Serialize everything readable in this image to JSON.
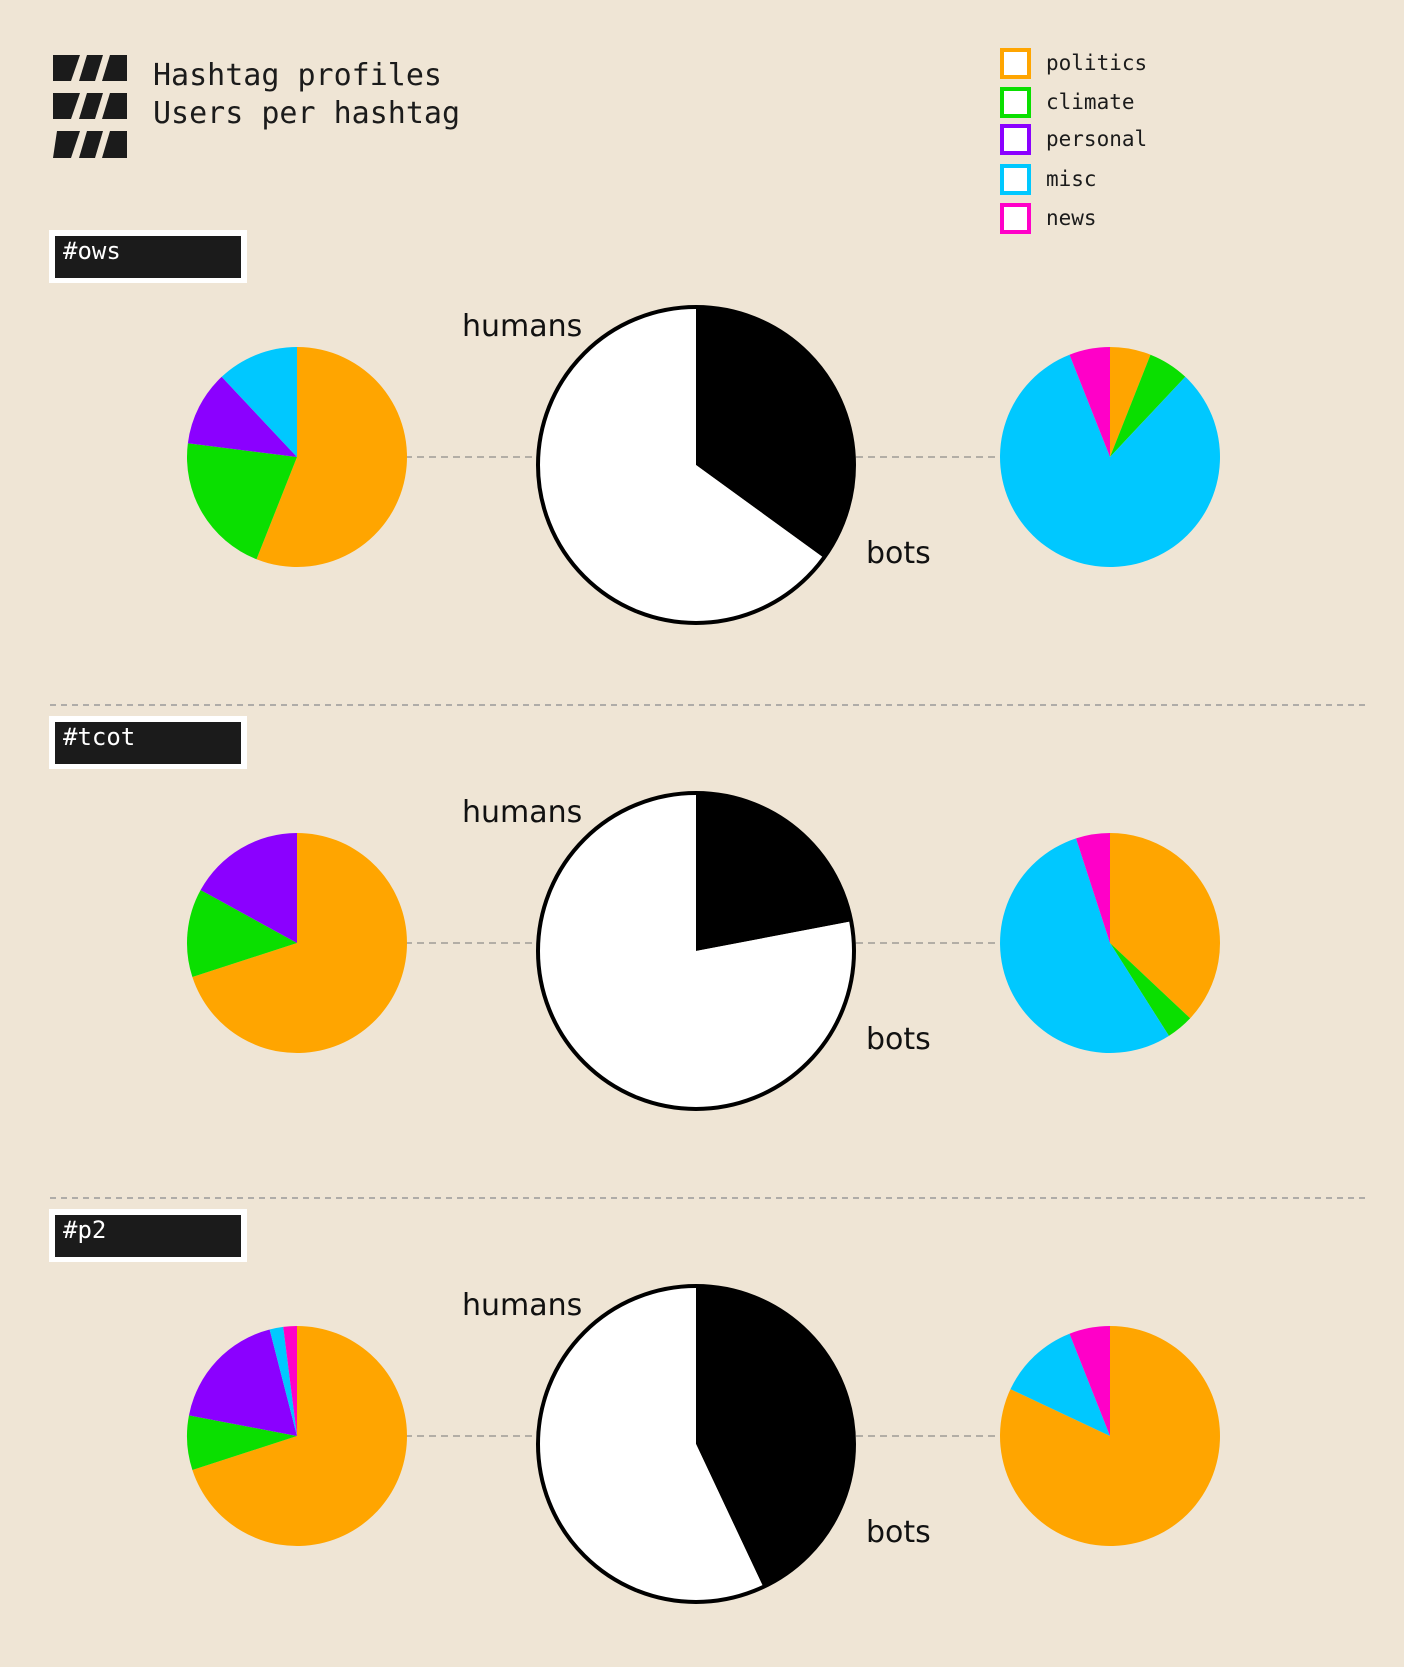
{
  "header": {
    "title_line1": "Hashtag profiles",
    "title_line2": "Users per hashtag"
  },
  "colors": {
    "background": "#efe5d5",
    "divider": "#9a9a9a",
    "tag_fill": "#1b1b1b",
    "tag_text": "#ffffff",
    "humans": "#ffffff",
    "bots": "#000000"
  },
  "legend": {
    "placement": "top-right",
    "items": [
      {
        "label": "politics",
        "color": "#ffa500"
      },
      {
        "label": "climate",
        "color": "#0adf00"
      },
      {
        "label": "personal",
        "color": "#8b00ff"
      },
      {
        "label": "misc",
        "color": "#00c8ff"
      },
      {
        "label": "news",
        "color": "#ff00c8"
      }
    ]
  },
  "chart_data": [
    {
      "type": "pie",
      "hashtag": "#ows",
      "center_labels": {
        "humans": "humans",
        "bots": "bots"
      },
      "humans_vs_bots": {
        "humans": 65,
        "bots": 35
      },
      "human_topics": {
        "politics": 56,
        "climate": 21,
        "personal": 11,
        "misc": 12,
        "news": 0
      },
      "bot_topics": {
        "politics": 6,
        "climate": 6,
        "personal": 0,
        "misc": 82,
        "news": 6
      }
    },
    {
      "type": "pie",
      "hashtag": "#tcot",
      "center_labels": {
        "humans": "humans",
        "bots": "bots"
      },
      "humans_vs_bots": {
        "humans": 78,
        "bots": 22
      },
      "human_topics": {
        "politics": 70,
        "climate": 13,
        "personal": 17,
        "misc": 0,
        "news": 0
      },
      "bot_topics": {
        "politics": 37,
        "climate": 4,
        "personal": 0,
        "misc": 54,
        "news": 5
      }
    },
    {
      "type": "pie",
      "hashtag": "#p2",
      "center_labels": {
        "humans": "humans",
        "bots": "bots"
      },
      "humans_vs_bots": {
        "humans": 57,
        "bots": 43
      },
      "human_topics": {
        "politics": 70,
        "climate": 8,
        "personal": 18,
        "misc": 2,
        "news": 2
      },
      "bot_topics": {
        "politics": 82,
        "climate": 0,
        "personal": 0,
        "misc": 12,
        "news": 6
      }
    }
  ]
}
